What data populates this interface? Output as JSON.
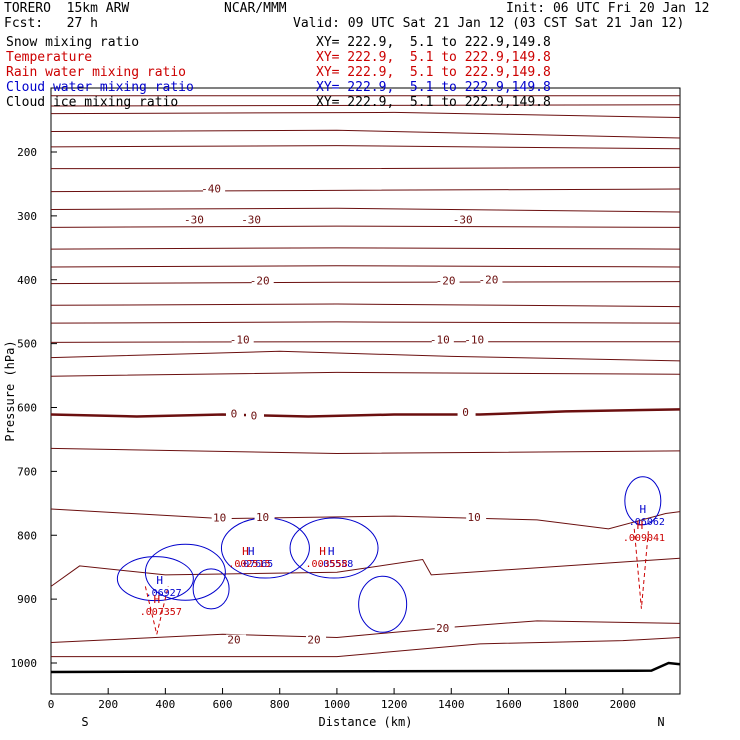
{
  "header": {
    "model": "TORERO  15km ARW",
    "center": "NCAR/MMM",
    "init": "Init: 06 UTC Fri 20 Jan 12",
    "fcst": "Fcst:   27 h",
    "valid": "Valid: 09 UTC Sat 21 Jan 12 (03 CST Sat 21 Jan 12)"
  },
  "legend": [
    {
      "name": "Snow mixing ratio",
      "xy": "XY= 222.9,  5.1 to 222.9,149.8",
      "color": "#000000"
    },
    {
      "name": "Temperature",
      "xy": "XY= 222.9,  5.1 to 222.9,149.8",
      "color": "#cc0000"
    },
    {
      "name": "Rain water mixing ratio",
      "xy": "XY= 222.9,  5.1 to 222.9,149.8",
      "color": "#cc0000"
    },
    {
      "name": "Cloud water mixing ratio",
      "xy": "XY= 222.9,  5.1 to 222.9,149.8",
      "color": "#0000cc"
    },
    {
      "name": "Cloud ice mixing ratio",
      "xy": "XY= 222.9,  5.1 to 222.9,149.8",
      "color": "#000000"
    }
  ],
  "chart_data": {
    "type": "contour-cross-section",
    "xlabel": "Distance (km)",
    "ylabel": "Pressure (hPa)",
    "xlim": [
      0,
      2200
    ],
    "ylim": [
      1050,
      100
    ],
    "x_ticks": [
      0,
      200,
      400,
      600,
      800,
      1000,
      1200,
      1400,
      1600,
      1800,
      2000
    ],
    "y_ticks": [
      200,
      300,
      400,
      500,
      600,
      700,
      800,
      900,
      1000
    ],
    "x_end_labels": {
      "left": "S",
      "right": "N"
    },
    "temperature_contour_labels": [
      {
        "value": "-40",
        "x": 560,
        "p": 262
      },
      {
        "value": "-30",
        "x": 500,
        "p": 310
      },
      {
        "value": "-30",
        "x": 700,
        "p": 310
      },
      {
        "value": "-30",
        "x": 1440,
        "p": 310
      },
      {
        "value": "-20",
        "x": 730,
        "p": 406
      },
      {
        "value": "-20",
        "x": 1380,
        "p": 406
      },
      {
        "value": "-20",
        "x": 1530,
        "p": 404
      },
      {
        "value": "-10",
        "x": 660,
        "p": 498
      },
      {
        "value": "-10",
        "x": 1360,
        "p": 498
      },
      {
        "value": "-10",
        "x": 1480,
        "p": 498
      },
      {
        "value": "0",
        "x": 640,
        "p": 614
      },
      {
        "value": "0",
        "x": 710,
        "p": 617
      },
      {
        "value": "0",
        "x": 1450,
        "p": 612
      },
      {
        "value": "10",
        "x": 590,
        "p": 777
      },
      {
        "value": "10",
        "x": 740,
        "p": 776
      },
      {
        "value": "10",
        "x": 1480,
        "p": 776
      },
      {
        "value": "20",
        "x": 640,
        "p": 968
      },
      {
        "value": "20",
        "x": 920,
        "p": 968
      },
      {
        "value": "20",
        "x": 1370,
        "p": 950
      }
    ],
    "extrema": [
      {
        "label": "H",
        "value": ".06927",
        "x": 380,
        "p": 876,
        "color": "#0000cc"
      },
      {
        "label": "H",
        "value": ".007357",
        "x": 370,
        "p": 906,
        "color": "#cc0000"
      },
      {
        "label": "H",
        "value": ".07665",
        "x": 700,
        "p": 831,
        "color": "#0000cc"
      },
      {
        "label": "H",
        "value": ".002515",
        "x": 680,
        "p": 831,
        "color": "#cc0000"
      },
      {
        "label": "H",
        "value": ".05558",
        "x": 980,
        "p": 831,
        "color": "#0000cc"
      },
      {
        "label": "H",
        "value": ".003558",
        "x": 950,
        "p": 831,
        "color": "#cc0000"
      },
      {
        "label": "H",
        "value": ".06062",
        "x": 2070,
        "p": 765,
        "color": "#0000cc"
      },
      {
        "label": "H",
        "value": ".009041",
        "x": 2060,
        "p": 790,
        "color": "#cc0000"
      }
    ]
  }
}
